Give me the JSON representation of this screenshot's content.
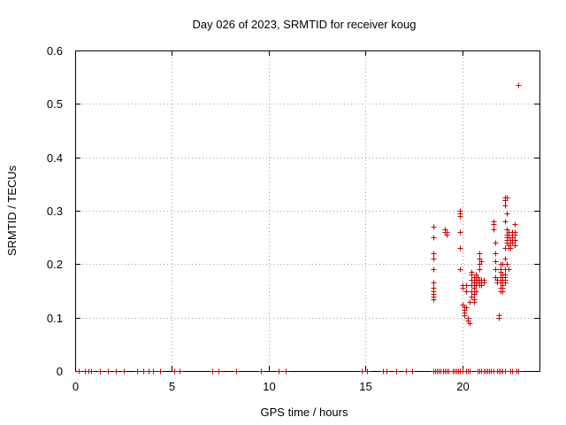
{
  "chart_data": {
    "type": "scatter",
    "title": "Day 026 of 2023, SRMTID for receiver koug",
    "xlabel": "GPS time / hours",
    "ylabel": "SRMTID / TECUs",
    "xlim": [
      0,
      24
    ],
    "ylim": [
      0,
      0.6
    ],
    "x_ticks": [
      0,
      5,
      10,
      15,
      20
    ],
    "y_ticks": [
      0,
      0.1,
      0.2,
      0.3,
      0.4,
      0.5,
      0.6
    ],
    "x_tick_labels": [
      "0",
      "5",
      "10",
      "15",
      "20"
    ],
    "y_tick_labels": [
      "0",
      "0.1",
      "0.2",
      "0.3",
      "0.4",
      "0.5",
      "0.6"
    ],
    "grid": true,
    "marker": "+",
    "color": "#cc0000",
    "series": [
      {
        "name": "SRMTID",
        "points": [
          [
            0.2,
            0
          ],
          [
            0.5,
            0
          ],
          [
            0.7,
            0
          ],
          [
            0.8,
            0
          ],
          [
            1.3,
            0
          ],
          [
            1.7,
            0
          ],
          [
            2.1,
            0
          ],
          [
            2.5,
            0
          ],
          [
            3.2,
            0
          ],
          [
            3.5,
            0
          ],
          [
            3.8,
            0
          ],
          [
            4.0,
            0
          ],
          [
            4.4,
            0
          ],
          [
            5.1,
            0
          ],
          [
            5.4,
            0
          ],
          [
            7.1,
            0
          ],
          [
            7.4,
            0
          ],
          [
            8.3,
            0
          ],
          [
            9.6,
            0
          ],
          [
            10.5,
            0
          ],
          [
            10.9,
            0
          ],
          [
            14.8,
            0
          ],
          [
            15.1,
            0
          ],
          [
            15.9,
            0
          ],
          [
            16.1,
            0
          ],
          [
            16.6,
            0
          ],
          [
            17.1,
            0
          ],
          [
            17.4,
            0
          ],
          [
            18.5,
            0
          ],
          [
            18.6,
            0
          ],
          [
            18.7,
            0
          ],
          [
            18.8,
            0
          ],
          [
            18.9,
            0
          ],
          [
            19.0,
            0
          ],
          [
            19.1,
            0
          ],
          [
            19.2,
            0
          ],
          [
            19.3,
            0
          ],
          [
            19.5,
            0
          ],
          [
            19.6,
            0
          ],
          [
            19.7,
            0
          ],
          [
            19.8,
            0
          ],
          [
            19.9,
            0
          ],
          [
            20.0,
            0
          ],
          [
            20.2,
            0
          ],
          [
            20.3,
            0
          ],
          [
            20.4,
            0
          ],
          [
            20.8,
            0
          ],
          [
            20.9,
            0
          ],
          [
            21.0,
            0
          ],
          [
            21.1,
            0
          ],
          [
            21.2,
            0
          ],
          [
            21.3,
            0
          ],
          [
            21.4,
            0
          ],
          [
            21.5,
            0
          ],
          [
            21.6,
            0
          ],
          [
            21.8,
            0
          ],
          [
            21.9,
            0
          ],
          [
            22.0,
            0
          ],
          [
            22.1,
            0
          ],
          [
            22.2,
            0
          ],
          [
            22.5,
            0
          ],
          [
            22.6,
            0
          ],
          [
            22.8,
            0
          ],
          [
            22.9,
            0
          ],
          [
            18.5,
            0.27
          ],
          [
            18.5,
            0.25
          ],
          [
            18.5,
            0.22
          ],
          [
            18.5,
            0.21
          ],
          [
            18.5,
            0.19
          ],
          [
            18.5,
            0.165
          ],
          [
            18.5,
            0.155
          ],
          [
            18.5,
            0.15
          ],
          [
            18.5,
            0.145
          ],
          [
            18.5,
            0.14
          ],
          [
            18.5,
            0.135
          ],
          [
            19.1,
            0.265
          ],
          [
            19.1,
            0.26
          ],
          [
            19.2,
            0.26
          ],
          [
            19.2,
            0.255
          ],
          [
            19.9,
            0.3
          ],
          [
            19.9,
            0.295
          ],
          [
            19.9,
            0.29
          ],
          [
            19.9,
            0.26
          ],
          [
            19.9,
            0.23
          ],
          [
            19.9,
            0.19
          ],
          [
            20.0,
            0.16
          ],
          [
            20.0,
            0.155
          ],
          [
            20.0,
            0.125
          ],
          [
            20.1,
            0.12
          ],
          [
            20.1,
            0.115
          ],
          [
            20.1,
            0.11
          ],
          [
            20.1,
            0.105
          ],
          [
            20.2,
            0.16
          ],
          [
            20.2,
            0.15
          ],
          [
            20.2,
            0.12
          ],
          [
            20.3,
            0.1
          ],
          [
            20.3,
            0.095
          ],
          [
            20.4,
            0.09
          ],
          [
            20.4,
            0.13
          ],
          [
            20.5,
            0.185
          ],
          [
            20.5,
            0.18
          ],
          [
            20.5,
            0.17
          ],
          [
            20.5,
            0.16
          ],
          [
            20.5,
            0.15
          ],
          [
            20.5,
            0.14
          ],
          [
            20.6,
            0.175
          ],
          [
            20.6,
            0.165
          ],
          [
            20.6,
            0.155
          ],
          [
            20.6,
            0.145
          ],
          [
            20.6,
            0.135
          ],
          [
            20.6,
            0.13
          ],
          [
            20.7,
            0.18
          ],
          [
            20.7,
            0.17
          ],
          [
            20.7,
            0.16
          ],
          [
            20.7,
            0.15
          ],
          [
            20.8,
            0.175
          ],
          [
            20.8,
            0.165
          ],
          [
            20.9,
            0.22
          ],
          [
            20.9,
            0.21
          ],
          [
            20.9,
            0.2
          ],
          [
            20.9,
            0.19
          ],
          [
            20.9,
            0.17
          ],
          [
            20.9,
            0.16
          ],
          [
            21.0,
            0.205
          ],
          [
            21.0,
            0.17
          ],
          [
            21.0,
            0.165
          ],
          [
            21.0,
            0.16
          ],
          [
            21.1,
            0.17
          ],
          [
            21.1,
            0.165
          ],
          [
            21.6,
            0.28
          ],
          [
            21.6,
            0.275
          ],
          [
            21.6,
            0.265
          ],
          [
            21.7,
            0.24
          ],
          [
            21.7,
            0.22
          ],
          [
            21.7,
            0.205
          ],
          [
            21.7,
            0.19
          ],
          [
            21.7,
            0.175
          ],
          [
            21.8,
            0.17
          ],
          [
            21.8,
            0.165
          ],
          [
            21.9,
            0.105
          ],
          [
            21.9,
            0.1
          ],
          [
            22.0,
            0.2
          ],
          [
            22.0,
            0.19
          ],
          [
            22.0,
            0.185
          ],
          [
            22.0,
            0.175
          ],
          [
            22.0,
            0.165
          ],
          [
            22.0,
            0.155
          ],
          [
            22.0,
            0.15
          ],
          [
            22.1,
            0.2
          ],
          [
            22.1,
            0.18
          ],
          [
            22.1,
            0.17
          ],
          [
            22.1,
            0.16
          ],
          [
            22.1,
            0.155
          ],
          [
            22.1,
            0.15
          ],
          [
            22.2,
            0.23
          ],
          [
            22.2,
            0.21
          ],
          [
            22.2,
            0.19
          ],
          [
            22.2,
            0.18
          ],
          [
            22.2,
            0.175
          ],
          [
            22.2,
            0.17
          ],
          [
            22.2,
            0.165
          ],
          [
            22.2,
            0.325
          ],
          [
            22.2,
            0.32
          ],
          [
            22.3,
            0.325
          ],
          [
            22.2,
            0.31
          ],
          [
            22.2,
            0.28
          ],
          [
            22.3,
            0.295
          ],
          [
            22.3,
            0.265
          ],
          [
            22.3,
            0.255
          ],
          [
            22.3,
            0.25
          ],
          [
            22.3,
            0.245
          ],
          [
            22.3,
            0.24
          ],
          [
            22.3,
            0.2
          ],
          [
            22.4,
            0.26
          ],
          [
            22.4,
            0.255
          ],
          [
            22.4,
            0.25
          ],
          [
            22.4,
            0.235
          ],
          [
            22.4,
            0.23
          ],
          [
            22.4,
            0.19
          ],
          [
            22.5,
            0.245
          ],
          [
            22.5,
            0.24
          ],
          [
            22.5,
            0.23
          ],
          [
            22.6,
            0.26
          ],
          [
            22.6,
            0.255
          ],
          [
            22.6,
            0.25
          ],
          [
            22.6,
            0.24
          ],
          [
            22.7,
            0.275
          ],
          [
            22.7,
            0.26
          ],
          [
            22.7,
            0.255
          ],
          [
            22.7,
            0.245
          ],
          [
            22.7,
            0.235
          ],
          [
            22.9,
            0.535
          ]
        ]
      }
    ]
  }
}
